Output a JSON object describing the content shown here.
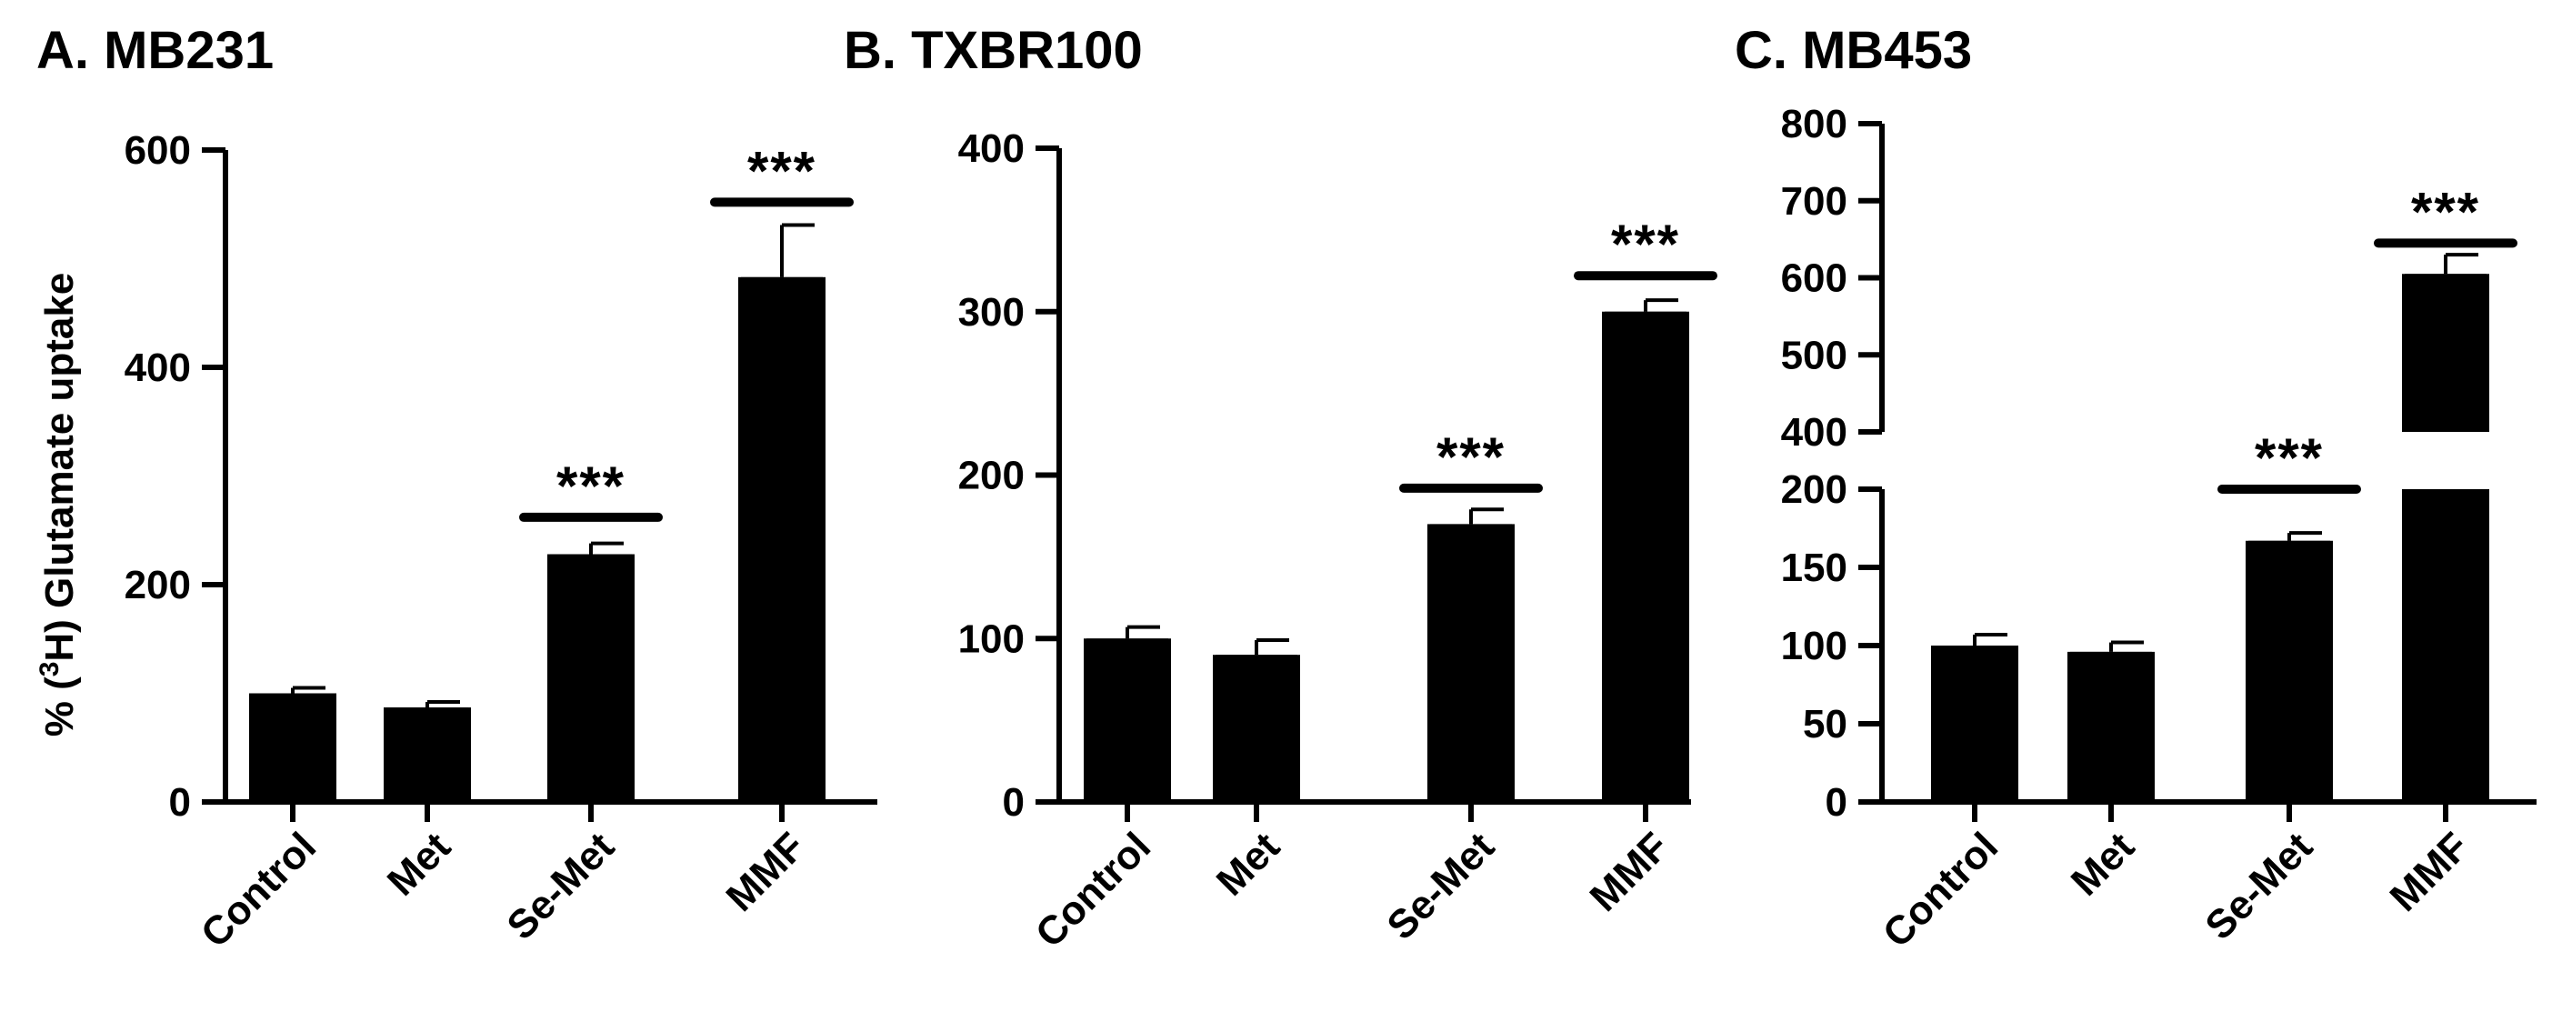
{
  "figure": {
    "ylabel_prefix": "% (",
    "ylabel_sup": "3",
    "ylabel_suffix": "H) Glutamate uptake"
  },
  "chart_data": [
    {
      "type": "bar",
      "title": "A. MB231",
      "categories": [
        "Control",
        "Met",
        "Se-Met",
        "MMF"
      ],
      "values": [
        100,
        87,
        228,
        483
      ],
      "errors": [
        5,
        5,
        10,
        48
      ],
      "yticks": [
        "0",
        "200",
        "400",
        "600"
      ],
      "ylim": [
        0,
        600
      ],
      "significance": [
        {
          "category": "Se-Met",
          "label": "***",
          "line_at": 262
        },
        {
          "category": "MMF",
          "label": "***",
          "line_at": 552
        }
      ]
    },
    {
      "type": "bar",
      "title": "B. TXBR100",
      "categories": [
        "Control",
        "Met",
        "Se-Met",
        "MMF"
      ],
      "values": [
        100,
        90,
        170,
        300
      ],
      "errors": [
        7,
        9,
        9,
        7
      ],
      "yticks": [
        "0",
        "100",
        "200",
        "300",
        "400"
      ],
      "ylim": [
        0,
        400
      ],
      "significance": [
        {
          "category": "Se-Met",
          "label": "***",
          "line_at": 192
        },
        {
          "category": "MMF",
          "label": "***",
          "line_at": 322
        }
      ]
    },
    {
      "type": "bar",
      "title": "C. MB453",
      "categories": [
        "Control",
        "Met",
        "Se-Met",
        "MMF"
      ],
      "values": [
        100,
        96,
        167,
        605
      ],
      "errors": [
        7,
        6,
        5,
        25
      ],
      "yticks_lower": [
        "0",
        "50",
        "100",
        "150",
        "200"
      ],
      "yticks_upper": [
        "400",
        "500",
        "600",
        "700",
        "800"
      ],
      "ylim_lower": [
        0,
        200
      ],
      "ylim_upper": [
        400,
        800
      ],
      "axis_break": true,
      "significance": [
        {
          "category": "Se-Met",
          "label": "***",
          "line_at": 200
        },
        {
          "category": "MMF",
          "label": "***",
          "line_at": 645
        }
      ]
    }
  ]
}
